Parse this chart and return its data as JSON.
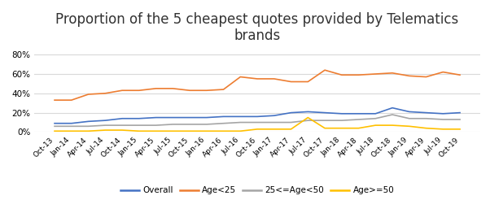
{
  "title": "Proportion of the 5 cheapest quotes provided by Telematics\nbrands",
  "title_fontsize": 12,
  "ylim": [
    0,
    0.88
  ],
  "yticks": [
    0.0,
    0.2,
    0.4,
    0.6,
    0.8
  ],
  "ytick_labels": [
    "0%",
    "20%",
    "40%",
    "60%",
    "80%"
  ],
  "x_labels": [
    "Oct-13",
    "Jan-14",
    "Apr-14",
    "Jul-14",
    "Oct-14",
    "Jan-15",
    "Apr-15",
    "Jul-15",
    "Oct-15",
    "Jan-16",
    "Apr-16",
    "Jul-16",
    "Oct-16",
    "Jan-17",
    "Apr-17",
    "Jul-17",
    "Oct-17",
    "Jan-18",
    "Apr-18",
    "Jul-18",
    "Oct-18",
    "Jan-19",
    "Apr-19",
    "Jul-19",
    "Oct-19"
  ],
  "series": {
    "Overall": {
      "color": "#4472C4",
      "values": [
        0.09,
        0.09,
        0.11,
        0.12,
        0.14,
        0.14,
        0.15,
        0.15,
        0.15,
        0.15,
        0.16,
        0.16,
        0.16,
        0.17,
        0.2,
        0.21,
        0.2,
        0.19,
        0.19,
        0.19,
        0.25,
        0.21,
        0.2,
        0.19,
        0.2
      ]
    },
    "Age<25": {
      "color": "#ED7D31",
      "values": [
        0.33,
        0.33,
        0.39,
        0.4,
        0.43,
        0.43,
        0.45,
        0.45,
        0.43,
        0.43,
        0.44,
        0.57,
        0.55,
        0.55,
        0.52,
        0.52,
        0.64,
        0.59,
        0.59,
        0.6,
        0.61,
        0.58,
        0.57,
        0.62,
        0.59
      ]
    },
    "25<=Age<50": {
      "color": "#A5A5A5",
      "values": [
        0.06,
        0.06,
        0.06,
        0.07,
        0.07,
        0.07,
        0.07,
        0.08,
        0.08,
        0.08,
        0.09,
        0.1,
        0.1,
        0.1,
        0.1,
        0.12,
        0.12,
        0.12,
        0.13,
        0.14,
        0.18,
        0.14,
        0.14,
        0.13,
        0.13
      ]
    },
    "Age>=50": {
      "color": "#FFC000",
      "values": [
        0.01,
        0.01,
        0.01,
        0.02,
        0.02,
        0.01,
        0.01,
        0.01,
        0.01,
        0.01,
        0.01,
        0.01,
        0.03,
        0.03,
        0.03,
        0.15,
        0.04,
        0.04,
        0.04,
        0.07,
        0.07,
        0.06,
        0.04,
        0.03,
        0.03
      ]
    }
  },
  "legend_labels": [
    "Overall",
    "Age<25",
    "25<=Age<50",
    "Age>=50"
  ],
  "background_color": "#FFFFFF",
  "grid_color": "#D9D9D9"
}
